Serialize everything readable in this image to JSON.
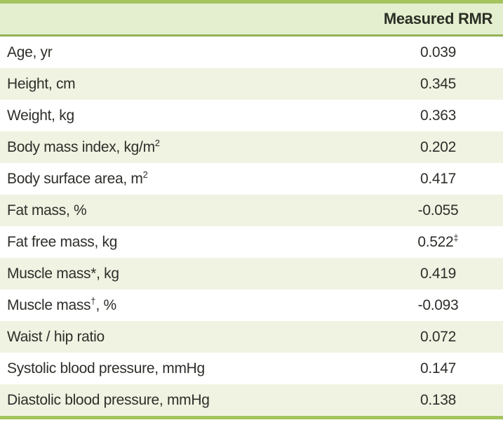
{
  "colors": {
    "rule_green": "#a3c45e",
    "header_bg": "#e4efcf",
    "header_rule": "#93b156",
    "alt_row_bg": "#f0f3e2",
    "text": "#2e2e2a"
  },
  "table": {
    "header": {
      "label_col": "",
      "value_col": "Measured RMR"
    },
    "rows": [
      {
        "label_pre": "Age, yr",
        "label_sup": "",
        "label_post": "",
        "value": "0.039",
        "value_sup": ""
      },
      {
        "label_pre": "Height, cm",
        "label_sup": "",
        "label_post": "",
        "value": "0.345",
        "value_sup": ""
      },
      {
        "label_pre": "Weight, kg",
        "label_sup": "",
        "label_post": "",
        "value": "0.363",
        "value_sup": ""
      },
      {
        "label_pre": "Body mass index, kg/m",
        "label_sup": "2",
        "label_post": "",
        "value": "0.202",
        "value_sup": ""
      },
      {
        "label_pre": "Body surface area, m",
        "label_sup": "2",
        "label_post": "",
        "value": "0.417",
        "value_sup": ""
      },
      {
        "label_pre": "Fat mass, %",
        "label_sup": "",
        "label_post": "",
        "value": "-0.055",
        "value_sup": ""
      },
      {
        "label_pre": "Fat free mass, kg",
        "label_sup": "",
        "label_post": "",
        "value": "0.522",
        "value_sup": "‡"
      },
      {
        "label_pre": "Muscle mass*, kg",
        "label_sup": "",
        "label_post": "",
        "value": "0.419",
        "value_sup": ""
      },
      {
        "label_pre": "Muscle mass",
        "label_sup": "†",
        "label_post": ", %",
        "value": "-0.093",
        "value_sup": ""
      },
      {
        "label_pre": "Waist / hip ratio",
        "label_sup": "",
        "label_post": "",
        "value": "0.072",
        "value_sup": ""
      },
      {
        "label_pre": "Systolic blood pressure, mmHg",
        "label_sup": "",
        "label_post": "",
        "value": "0.147",
        "value_sup": ""
      },
      {
        "label_pre": "Diastolic blood pressure, mmHg",
        "label_sup": "",
        "label_post": "",
        "value": "0.138",
        "value_sup": ""
      }
    ]
  }
}
